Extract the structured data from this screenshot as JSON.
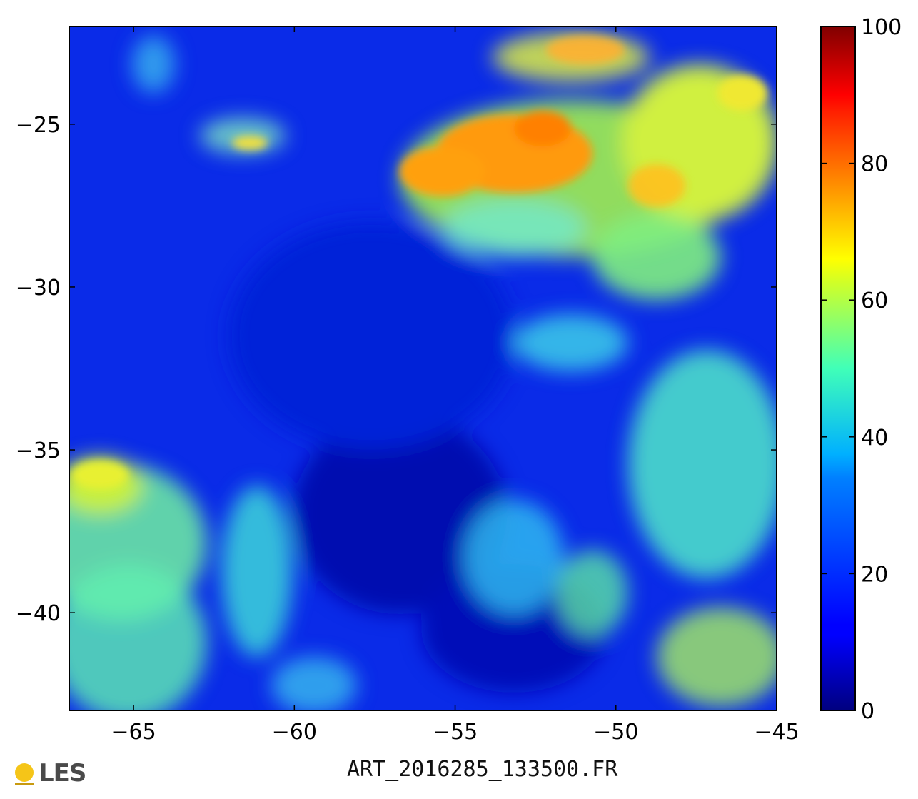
{
  "chart_data": {
    "type": "heatmap",
    "title": "",
    "xlabel": "",
    "ylabel": "",
    "xlim": [
      -67,
      -45
    ],
    "ylim": [
      -43,
      -22
    ],
    "x_ticks": [
      "−65",
      "−60",
      "−55",
      "−50",
      "−45"
    ],
    "x_tick_values": [
      -65,
      -60,
      -55,
      -50,
      -45
    ],
    "y_ticks": [
      "−25",
      "−30",
      "−35",
      "−40"
    ],
    "y_tick_values": [
      -25,
      -30,
      -35,
      -40
    ],
    "colormap": "jet",
    "colorbar": {
      "range": [
        0,
        100
      ],
      "ticks": [
        "0",
        "20",
        "40",
        "60",
        "80",
        "100"
      ],
      "tick_values": [
        0,
        20,
        40,
        60,
        80,
        100
      ]
    }
  },
  "caption": "ART_2016285_133500.FR",
  "logo": {
    "text": "LES",
    "dot_color": "#f5c518"
  }
}
